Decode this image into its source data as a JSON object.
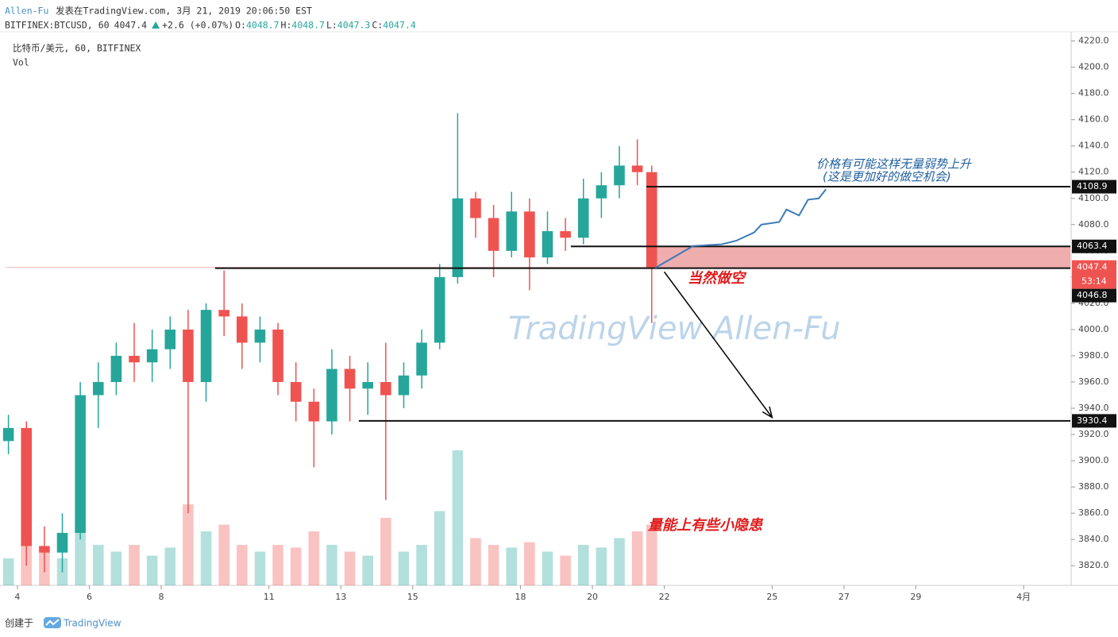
{
  "header": {
    "author": "Allen-Fu",
    "published": "发表在TradingView.com, 3月 21, 2019 20:06:50 EST",
    "symbol": "BITFINEX:BTCUSD, 60",
    "price": "4047.4",
    "change": "+2.6 (+0.07%)",
    "ohlc": [
      {
        "label": "O:",
        "value": "4048.7"
      },
      {
        "label": "H:",
        "value": "4048.7"
      },
      {
        "label": "L:",
        "value": "4047.3"
      },
      {
        "label": "C:",
        "value": "4047.4"
      }
    ]
  },
  "footer": {
    "created": "创建于",
    "brand": "TradingView"
  },
  "chart_data": {
    "type": "candlestick",
    "title": "比特币/美元, 60, BITFINEX",
    "volume_label": "Vol",
    "watermark": "TradingView  Allen-Fu",
    "up_color": "#26a69a",
    "down_color": "#ef5350",
    "x": [
      3.75,
      4.25,
      4.75,
      5.25,
      5.75,
      6.25,
      6.75,
      7.25,
      7.75,
      8.25,
      8.75,
      9.25,
      9.75,
      10.25,
      10.75,
      11.25,
      11.75,
      12.25,
      12.75,
      13.25,
      13.75,
      14.25,
      14.75,
      15.25,
      15.75,
      16.25,
      16.75,
      17.25,
      17.75,
      18.25,
      18.75,
      19.25,
      19.75,
      20.25,
      20.75,
      21.25,
      21.65
    ],
    "open": [
      3915,
      3925,
      3835,
      3830,
      3845,
      3950,
      3960,
      3980,
      3975,
      3985,
      4000,
      3960,
      4015,
      4010,
      3990,
      4000,
      3960,
      3945,
      3930,
      3970,
      3955,
      3960,
      3950,
      3965,
      3990,
      4040,
      4100,
      4085,
      4060,
      4090,
      4055,
      4075,
      4070,
      4100,
      4110,
      4125,
      4120
    ],
    "high": [
      3935,
      3930,
      3850,
      3860,
      3960,
      3975,
      3990,
      4005,
      4000,
      4010,
      4015,
      4020,
      4045,
      4020,
      4010,
      4005,
      3975,
      3955,
      3985,
      3980,
      3975,
      3990,
      3975,
      4000,
      4050,
      4165,
      4105,
      4095,
      4105,
      4100,
      4090,
      4085,
      4115,
      4120,
      4140,
      4145,
      4125
    ],
    "low": [
      3905,
      3820,
      3815,
      3815,
      3840,
      3925,
      3950,
      3960,
      3960,
      3970,
      3860,
      3945,
      3995,
      3970,
      3975,
      3950,
      3930,
      3895,
      3920,
      3930,
      3935,
      3870,
      3940,
      3955,
      3985,
      4035,
      4070,
      4040,
      4055,
      4030,
      4050,
      4060,
      4065,
      4085,
      4100,
      4110,
      4005
    ],
    "close": [
      3925,
      3835,
      3830,
      3845,
      3950,
      3960,
      3980,
      3975,
      3985,
      4000,
      3960,
      4015,
      4010,
      3990,
      4000,
      3960,
      3945,
      3930,
      3970,
      3955,
      3960,
      3950,
      3965,
      3990,
      4040,
      4100,
      4085,
      4060,
      4090,
      4055,
      4075,
      4070,
      4100,
      4110,
      4125,
      4120,
      4047.4
    ],
    "volume": [
      20,
      35,
      25,
      20,
      45,
      30,
      25,
      30,
      22,
      28,
      60,
      40,
      45,
      30,
      25,
      30,
      28,
      40,
      30,
      25,
      22,
      50,
      25,
      30,
      55,
      100,
      35,
      30,
      28,
      32,
      25,
      22,
      30,
      28,
      35,
      40,
      45
    ],
    "xlim": [
      3.67,
      33.3
    ],
    "xticks": [
      4,
      6,
      8,
      11,
      13,
      15,
      18,
      20,
      22,
      25,
      27,
      29,
      {
        "value": 32,
        "label": "4月"
      }
    ],
    "ylim": [
      3805,
      4227
    ],
    "yticks": [
      {
        "value": 3820,
        "label": "3820.0"
      },
      {
        "value": 3840,
        "label": "3840.0"
      },
      {
        "value": 3860,
        "label": "3860.0"
      },
      {
        "value": 3880,
        "label": "3880.0"
      },
      {
        "value": 3900,
        "label": "3900.0"
      },
      {
        "value": 3920,
        "label": "3920.0"
      },
      {
        "value": 3940,
        "label": "3940.0"
      },
      {
        "value": 3960,
        "label": "3960.0"
      },
      {
        "value": 3980,
        "label": "3980.0"
      },
      {
        "value": 4000,
        "label": "4000.0"
      },
      {
        "value": 4020,
        "label": "4020.0"
      },
      {
        "value": 4040,
        "label": "4040.0"
      },
      {
        "value": 4060,
        "label": "4060.0"
      },
      {
        "value": 4080,
        "label": "4080.0"
      },
      {
        "value": 4100,
        "label": "4100.0"
      },
      {
        "value": 4120,
        "label": "4120.0"
      },
      {
        "value": 4140,
        "label": "4140.0"
      },
      {
        "value": 4160,
        "label": "4160.0"
      },
      {
        "value": 4180,
        "label": "4180.0"
      },
      {
        "value": 4200,
        "label": "4200.0"
      },
      {
        "value": 4220,
        "label": "4220.0"
      }
    ],
    "levels": [
      {
        "value": 4108.9,
        "from": 21.5
      },
      {
        "value": 4063.4,
        "from": 19.4
      },
      {
        "value": 4046.8,
        "from": 9.5
      },
      {
        "value": 3930.4,
        "from": 13.5
      }
    ],
    "zone": {
      "low": 4046.8,
      "high": 4063.4,
      "from": 21.5,
      "color": "#eea4a4"
    },
    "last_price": {
      "value": 4047.4,
      "countdown": "53:14",
      "color": "#ef5350"
    },
    "projection": {
      "color": "#3a7ab8",
      "x": [
        21.75,
        22.8,
        23.6,
        24.0,
        24.5,
        24.7,
        25.2,
        25.4,
        25.75,
        26.0,
        26.3,
        26.5
      ],
      "y": [
        4047,
        4063.7,
        4065,
        4067.7,
        4074,
        4080,
        4082,
        4091.5,
        4087,
        4099,
        4100,
        4107
      ]
    },
    "arrow": {
      "x": [
        22.0,
        25.0
      ],
      "y": [
        4044,
        3933
      ]
    },
    "annotations": [
      "价格有可能这样无量弱势上升",
      "(这是更加好的做空机会)",
      "当然做空",
      "量能上有些小隐患"
    ]
  }
}
